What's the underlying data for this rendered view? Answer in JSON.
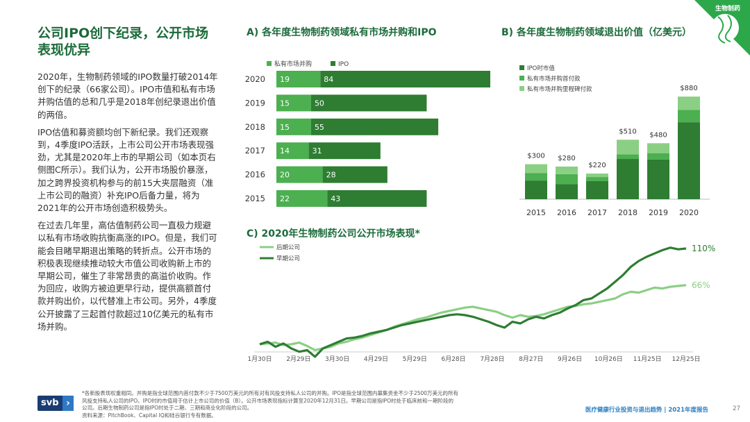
{
  "corner_label": "生物制药",
  "page_title": "公司IPO创下纪录，公开市场表现优异",
  "paragraphs": [
    "2020年，生物制药领域的IPO数量打破2014年创下的纪录（66家公司）。IPO市值和私有市场并购估值的总和几乎是2018年创纪录退出价值的两倍。",
    "IPO估值和募资额均创下新纪录。我们还观察到，4季度IPO活跃，上市公司公开市场表现强劲，尤其是2020年上市的早期公司（如本页右侧图C所示）。我们认为，公开市场股价暴涨，加之跨界投资机构参与的前15大夹层融资（准上市公司的融资）补充IPO后备力量，将为2021年的公开市场创造积极势头。",
    "在过去几年里，高估值制药公司一直极力规避以私有市场收购抗衡高涨的IPO。但是，我们可能会目睹早期退出策略的转折点。公开市场的积极表现继续推动较大市值公司收购新上市的早期公司，催生了非常昂贵的高溢价收购。作为回应，收购方被迫更早行动，提供高额首付款并购出价，以代替准上市公司。另外，4季度公开披露了三起首付款超过10亿美元的私有市场并购。"
  ],
  "footnote_lines": [
    "*各新股表现权重相同。并购是指全球范围内首付款不少于7500万美元的所有对有风投支持私人公司的并购。IPO是指全球范围内募集资金不少于2500万美元的所有",
    "风投支持私人公司的IPO。IPO时的市值用于估计上市公司的价值（B）。公开市场表现指标计算至2020年12月31日。早期公司是指IPO时处于临床前和一期阶段的",
    "公司。后期生物制药公司是指IPO时处于二期、三期和商业化阶段的公司。",
    "资料来源：PitchBook、Capital IQ和硅谷银行专有数据。"
  ],
  "logo_text": "svb",
  "footer_report": "医疗健康行业投资与退出趋势 | 2021年度报告",
  "page_number": "27",
  "colors": {
    "dark_green": "#2e7d32",
    "mid_green": "#4caf50",
    "light_green": "#8bcf84",
    "title_green": "#1b6b3a"
  },
  "chart_data": [
    {
      "id": "A",
      "type": "bar",
      "orientation": "horizontal",
      "stacked": true,
      "title": "A) 各年度生物制药领域私有市场并购和IPO",
      "categories": [
        "2020",
        "2019",
        "2018",
        "2017",
        "2016",
        "2015"
      ],
      "series": [
        {
          "name": "私有市场并购",
          "values": [
            19,
            15,
            15,
            14,
            20,
            22
          ],
          "color": "#4caf50"
        },
        {
          "name": "IPO",
          "values": [
            84,
            50,
            55,
            31,
            28,
            43
          ],
          "color": "#2e7d32"
        }
      ],
      "legend": "top-left"
    },
    {
      "id": "B",
      "type": "bar",
      "stacked": true,
      "title": "B) 各年度生物制药领域退出价值（亿美元）",
      "categories": [
        "2015",
        "2016",
        "2017",
        "2018",
        "2019",
        "2020"
      ],
      "totals": [
        "$300",
        "$280",
        "$220",
        "$510",
        "$480",
        "$880"
      ],
      "series": [
        {
          "name": "IPO时市值",
          "values": [
            160,
            130,
            155,
            345,
            340,
            660
          ],
          "color": "#2e7d32"
        },
        {
          "name": "私有市场并购首付款",
          "values": [
            65,
            85,
            35,
            40,
            55,
            105
          ],
          "color": "#4caf50"
        },
        {
          "name": "私有市场并购里程碑付款",
          "values": [
            75,
            65,
            30,
            125,
            85,
            115
          ],
          "color": "#8bcf84"
        }
      ],
      "legend": "top-left"
    },
    {
      "id": "C",
      "type": "line",
      "title": "C) 2020年生物制药公司公开市场表现*",
      "x_ticks": [
        "1月30日",
        "2月29日",
        "3月30日",
        "4月29日",
        "5月29日",
        "6月28日",
        "7月28日",
        "8月27日",
        "9月26日",
        "10月26日",
        "11月25日",
        "12月25日"
      ],
      "series": [
        {
          "name": "后期公司",
          "color": "#8bcf84",
          "end_label": "66%",
          "values": [
            -5,
            -4,
            -3,
            -6,
            -5,
            -3,
            -7,
            -12,
            -10,
            -8,
            -4,
            -2,
            1,
            3,
            6,
            9,
            12,
            16,
            19,
            22,
            25,
            27,
            30,
            33,
            35,
            37,
            39,
            40,
            38,
            36,
            34,
            30,
            27,
            30,
            28,
            29,
            31,
            34,
            37,
            40,
            41,
            43,
            44,
            46,
            48,
            50,
            55,
            58,
            57,
            60,
            63,
            62,
            64,
            65,
            66
          ]
        },
        {
          "name": "早期公司",
          "color": "#2e7d32",
          "end_label": "110%",
          "values": [
            -5,
            -2,
            -8,
            -4,
            -10,
            -14,
            -12,
            -20,
            -10,
            -6,
            -2,
            2,
            3,
            5,
            8,
            10,
            12,
            15,
            18,
            20,
            22,
            24,
            26,
            28,
            30,
            31,
            30,
            28,
            25,
            22,
            18,
            15,
            22,
            20,
            25,
            28,
            26,
            30,
            33,
            38,
            42,
            48,
            50,
            56,
            62,
            70,
            78,
            88,
            95,
            100,
            104,
            108,
            111,
            109,
            110
          ]
        }
      ],
      "legend": "top-left"
    }
  ]
}
